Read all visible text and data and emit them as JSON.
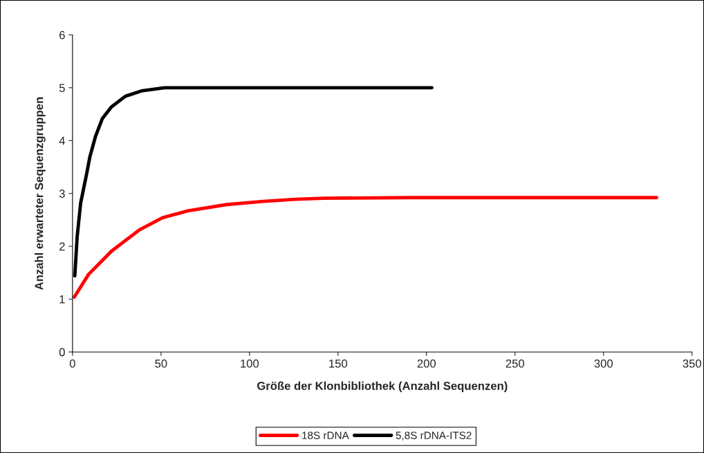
{
  "chart_data": {
    "type": "line",
    "xlabel": "Größe der Klonbibliothek (Anzahl Sequenzen)",
    "ylabel": "Anzahl erwarteter Sequenzgruppen",
    "xlim": [
      0,
      350
    ],
    "xticks": [
      0,
      50,
      100,
      150,
      200,
      250,
      300,
      350
    ],
    "ylim": [
      0,
      6
    ],
    "yticks": [
      0,
      1,
      2,
      3,
      4,
      5,
      6
    ],
    "grid": false,
    "legend": "bottom",
    "marker": "none",
    "line_style": "solid",
    "series": [
      {
        "name": "18S rDNA",
        "color": "#ff0000",
        "x": [
          1,
          9.1,
          22.1,
          37.8,
          50.8,
          65.1,
          87.2,
          108,
          126,
          142,
          190,
          330
        ],
        "values": [
          1.04,
          1.47,
          1.91,
          2.31,
          2.54,
          2.67,
          2.79,
          2.85,
          2.89,
          2.91,
          2.92,
          2.92
        ]
      },
      {
        "name": "5,8S rDNA-ITS2",
        "color": "#000000",
        "x": [
          1.3,
          2.6,
          4.6,
          7.8,
          9.8,
          13,
          16.9,
          22.1,
          29.9,
          39,
          52,
          203
        ],
        "values": [
          1.44,
          2.17,
          2.82,
          3.34,
          3.69,
          4.08,
          4.42,
          4.64,
          4.84,
          4.94,
          5,
          5
        ]
      }
    ]
  }
}
